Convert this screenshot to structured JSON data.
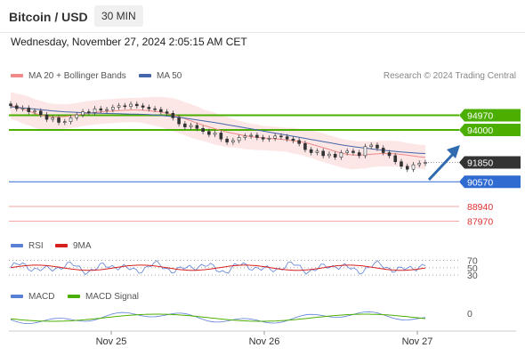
{
  "header": {
    "pair": "Bitcoin / USD",
    "timeframe": "30 MIN",
    "datetime": "Wednesday, November 27, 2024 2:05:15 AM CET"
  },
  "legend": {
    "ma20": "MA 20 + Bollinger Bands",
    "ma50": "MA 50",
    "credit": "Research © 2024 Trading Central"
  },
  "rsi_legend": {
    "rsi": "RSI",
    "ma9": "9MA"
  },
  "macd_legend": {
    "macd": "MACD",
    "signal": "MACD Signal"
  },
  "colors": {
    "green": "#4caf00",
    "blue": "#2f6bd1",
    "red": "#f06b6b",
    "bb_fill": "#fde3e3",
    "ma50": "#4466aa",
    "candle_up": "#3a8a2a",
    "candle_down": "#c62828",
    "arrow": "#2f6bae",
    "price_tag": "#333333"
  },
  "chart_data": [
    {
      "type": "candlestick",
      "y_range": [
        87000,
        97000
      ],
      "x_labels": [
        "Nov 25",
        "Nov 26",
        "Nov 27"
      ],
      "levels": [
        {
          "value": 94970,
          "label": "94970",
          "color": "green"
        },
        {
          "value": 94000,
          "label": "94000",
          "color": "green"
        },
        {
          "value": 90570,
          "label": "90570",
          "color": "blue"
        },
        {
          "value": 88940,
          "label": "88940",
          "color": "red"
        },
        {
          "value": 87970,
          "label": "87970",
          "color": "red"
        }
      ],
      "current_price": {
        "value": 91850,
        "label": "91850"
      },
      "ma20": [
        95610,
        95500,
        95380,
        95250,
        95100,
        94980,
        94900,
        94870,
        94860,
        94880,
        94920,
        94980,
        95050,
        95110,
        95160,
        95200,
        95230,
        95250,
        95280,
        95300,
        95320,
        95320,
        95300,
        95270,
        95230,
        95180,
        95100,
        95000,
        94880,
        94740,
        94600,
        94460,
        94320,
        94200,
        94080,
        93960,
        93860,
        93780,
        93700,
        93620,
        93560,
        93510,
        93470,
        93440,
        93410,
        93380,
        93340,
        93290,
        93230,
        93160,
        93060,
        92950,
        92830,
        92710,
        92590,
        92480,
        92390,
        92340,
        92340,
        92360,
        92390,
        92420,
        92440,
        92440,
        92420,
        92380,
        92330,
        92280,
        92230,
        92180
      ],
      "ma50": [
        95530,
        95500,
        95460,
        95420,
        95380,
        95340,
        95300,
        95260,
        95230,
        95200,
        95180,
        95160,
        95140,
        95120,
        95110,
        95100,
        95090,
        95080,
        95070,
        95060,
        95050,
        95040,
        95030,
        95010,
        94990,
        94960,
        94920,
        94880,
        94830,
        94780,
        94720,
        94660,
        94600,
        94540,
        94480,
        94420,
        94350,
        94280,
        94210,
        94140,
        94070,
        94000,
        93930,
        93860,
        93790,
        93720,
        93650,
        93580,
        93510,
        93440,
        93370,
        93300,
        93230,
        93160,
        93090,
        93020,
        92960,
        92900,
        92850,
        92800,
        92750,
        92700,
        92660,
        92620,
        92580,
        92540,
        92510,
        92480,
        92460,
        92440
      ],
      "bollinger_width": [
        900,
        900,
        950,
        950,
        950,
        950,
        900,
        850,
        850,
        800,
        800,
        800,
        800,
        800,
        800,
        800,
        800,
        800,
        800,
        800,
        800,
        800,
        850,
        900,
        950,
        1000,
        1050,
        1100,
        1100,
        1100,
        1100,
        1100,
        1050,
        1050,
        1050,
        1000,
        1000,
        950,
        900,
        900,
        850,
        850,
        800,
        800,
        800,
        800,
        800,
        850,
        850,
        900,
        900,
        950,
        950,
        950,
        950,
        950,
        950,
        950,
        900,
        900,
        850,
        850,
        850,
        850,
        850,
        850,
        800,
        800,
        800,
        800
      ],
      "candles_close": [
        95600,
        95400,
        95450,
        95200,
        95250,
        95000,
        94700,
        94800,
        94500,
        94550,
        94800,
        95000,
        95200,
        95150,
        95400,
        95300,
        95350,
        95500,
        95600,
        95550,
        95700,
        95600,
        95500,
        95400,
        95350,
        95200,
        95100,
        94800,
        94400,
        94200,
        94300,
        94100,
        93900,
        93700,
        93800,
        93400,
        93200,
        93300,
        93500,
        93600,
        93650,
        93500,
        93400,
        93450,
        93600,
        93550,
        93400,
        93300,
        93100,
        92700,
        92500,
        92600,
        92300,
        92400,
        92200,
        92500,
        92600,
        92500,
        92300,
        92900,
        93000,
        92800,
        92500,
        92300,
        91900,
        91600,
        91400,
        91700,
        91800,
        91850
      ],
      "rsi_levels": [
        70,
        50,
        30
      ],
      "macd_zero_label": "0"
    }
  ]
}
